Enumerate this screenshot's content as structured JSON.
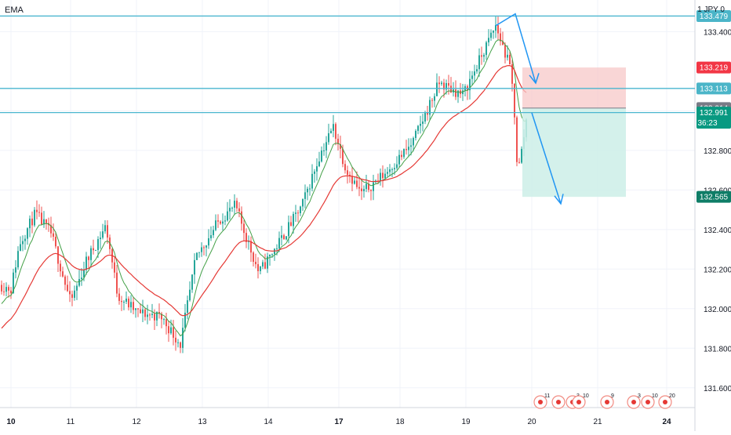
{
  "header": {
    "indicator_label": "EMA",
    "currency_label": "1 JPY 0"
  },
  "colors": {
    "up": "#26a69a",
    "down": "#ef5350",
    "ema_fast": "#43a047",
    "ema_slow": "#e53935",
    "hline": "#4ab6cf",
    "arrow": "#2196f3",
    "stop_zone": "#f7c8c8",
    "target_zone": "#cdeee8",
    "badge_teal": "#4bb5c8",
    "badge_red": "#f23645",
    "badge_gray": "#787b86",
    "badge_green": "#089981",
    "badge_dark_teal": "#0f7d67",
    "grid": "#f0f3fa"
  },
  "chart_data": {
    "type": "candlestick",
    "title": "",
    "ylim": [
      131.5,
      133.56
    ],
    "y_ticks": [
      "133.400",
      "133.000",
      "132.800",
      "132.600",
      "132.400",
      "132.200",
      "132.000",
      "131.800",
      "131.600"
    ],
    "x_ticks": [
      "10",
      "11",
      "12",
      "13",
      "14",
      "17",
      "18",
      "19",
      "20",
      "21",
      "24"
    ],
    "series": [
      {
        "name": "EMA"
      },
      {
        "name": "EMA"
      }
    ],
    "price_badges": [
      {
        "label": "133.479",
        "value": 133.479,
        "color_key": "badge_teal"
      },
      {
        "label": "133.219",
        "value": 133.219,
        "color_key": "badge_red"
      },
      {
        "label": "133.113",
        "value": 133.113,
        "color_key": "badge_teal"
      },
      {
        "label": "133.014",
        "value": 133.014,
        "color_key": "badge_gray"
      },
      {
        "label": "132.991",
        "sub": "36:23",
        "value": 132.991,
        "color_key": "badge_green"
      },
      {
        "label": "132.565",
        "value": 132.565,
        "color_key": "badge_dark_teal"
      }
    ],
    "horizontal_lines": [
      133.479,
      133.113,
      132.991
    ],
    "position": {
      "stop": 133.219,
      "entry": 133.014,
      "target": 132.565
    },
    "events": [
      {
        "label": "11"
      },
      {
        "label": ""
      },
      {
        "label": "3"
      },
      {
        "label": "10"
      },
      {
        "label": "9"
      },
      {
        "label": "3"
      },
      {
        "label": "10"
      },
      {
        "label": "20"
      }
    ]
  }
}
